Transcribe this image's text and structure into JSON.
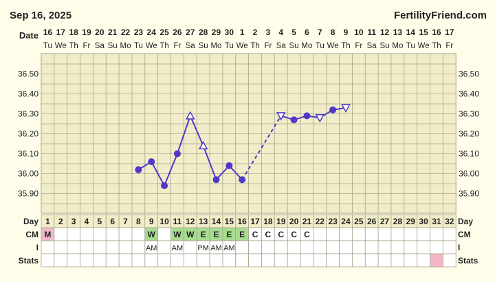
{
  "header": {
    "date_label": "Sep 16, 2025",
    "brand": "FertilityFriend.com",
    "date_row_label": "Date"
  },
  "dates": [
    "16",
    "17",
    "18",
    "19",
    "20",
    "21",
    "22",
    "23",
    "24",
    "25",
    "26",
    "27",
    "28",
    "29",
    "30",
    "1",
    "2",
    "3",
    "4",
    "5",
    "6",
    "7",
    "8",
    "9",
    "10",
    "11",
    "12",
    "13",
    "14",
    "15",
    "16",
    "17"
  ],
  "weekdays": [
    "Tu",
    "We",
    "Th",
    "Fr",
    "Sa",
    "Su",
    "Mo",
    "Tu",
    "We",
    "Th",
    "Fr",
    "Sa",
    "Su",
    "Mo",
    "Tu",
    "We",
    "Th",
    "Fr",
    "Sa",
    "Su",
    "Mo",
    "Tu",
    "We",
    "Th",
    "Fr",
    "Sa",
    "Su",
    "Mo",
    "Tu",
    "We",
    "Th",
    "Fr"
  ],
  "row_labels": {
    "day": "Day",
    "cm": "CM",
    "i": "I",
    "stats": "Stats"
  },
  "cm_values": [
    "M",
    "",
    "",
    "",
    "",
    "",
    "",
    "",
    "W",
    "",
    "W",
    "W",
    "E",
    "E",
    "E",
    "E",
    "C",
    "C",
    "C",
    "C",
    "C",
    "",
    "",
    "",
    "",
    "",
    "",
    "",
    "",
    "",
    "",
    ""
  ],
  "i_values": [
    "",
    "",
    "",
    "",
    "",
    "",
    "",
    "",
    "AM",
    "",
    "AM",
    "",
    "PM",
    "AM",
    "AM",
    "",
    "",
    "",
    "",
    "",
    "",
    "",
    "",
    "",
    "",
    "",
    "",
    "",
    "",
    "",
    "",
    ""
  ],
  "colors": {
    "background": "#fffdea",
    "grid_bg": "#f1edc9",
    "grid_line": "#a7a48c",
    "line": "#5038c8",
    "menses": "#f2b8c8",
    "cm_fertile": "#a8dc90",
    "text": "#222222"
  },
  "chart_data": {
    "type": "line",
    "x_label": "Day",
    "y_label": "",
    "ylim": [
      35.8,
      36.6
    ],
    "y_ticks": [
      "36.50",
      "36.40",
      "36.30",
      "36.20",
      "36.10",
      "36.00",
      "35.90"
    ],
    "points": [
      {
        "day": 8,
        "temp": 36.02,
        "marker": "dot"
      },
      {
        "day": 9,
        "temp": 36.06,
        "marker": "dot"
      },
      {
        "day": 10,
        "temp": 35.94,
        "marker": "dot"
      },
      {
        "day": 11,
        "temp": 36.1,
        "marker": "dot"
      },
      {
        "day": 12,
        "temp": 36.29,
        "marker": "triangle-up"
      },
      {
        "day": 13,
        "temp": 36.14,
        "marker": "triangle-up"
      },
      {
        "day": 14,
        "temp": 35.97,
        "marker": "dot"
      },
      {
        "day": 15,
        "temp": 36.04,
        "marker": "dot"
      },
      {
        "day": 16,
        "temp": 35.97,
        "marker": "dot"
      },
      {
        "day": 19,
        "temp": 36.29,
        "marker": "triangle-down"
      },
      {
        "day": 20,
        "temp": 36.27,
        "marker": "dot"
      },
      {
        "day": 21,
        "temp": 36.29,
        "marker": "dot"
      },
      {
        "day": 22,
        "temp": 36.28,
        "marker": "triangle-down"
      },
      {
        "day": 23,
        "temp": 36.32,
        "marker": "dot"
      },
      {
        "day": 24,
        "temp": 36.33,
        "marker": "triangle-down"
      }
    ],
    "dashed_segments": [
      [
        16,
        19
      ]
    ],
    "stats_highlight_day": 31,
    "grid": true
  }
}
